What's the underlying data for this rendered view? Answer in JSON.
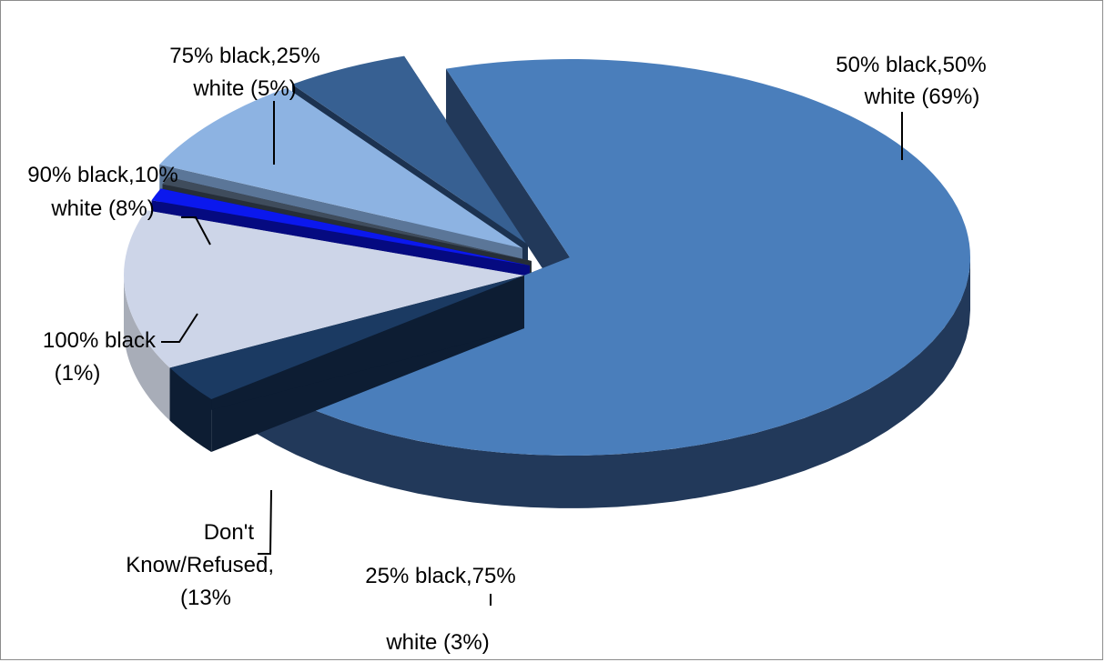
{
  "chart_data": {
    "type": "pie",
    "title": "",
    "legend": "none",
    "style": "3d-exploded",
    "slices": [
      {
        "label_line1": "50% black,50%",
        "label_line2": "white (69%)",
        "value": 69,
        "top_color": "#4a7ebb",
        "side_color": "#22395a"
      },
      {
        "label_line1": "25% black,75%",
        "label_line2": "white (3%)",
        "value": 3,
        "top_color": "#1b3a62",
        "side_color": "#0d1d33"
      },
      {
        "label_line1": "Don't",
        "label_line2": "Know/Refused,",
        "label_line3": "(13%",
        "value": 13,
        "top_color": "#cdd5e8",
        "side_color": "#a8adb8"
      },
      {
        "label_line1": "100% black",
        "label_line2": "(1%)",
        "value": 1,
        "top_color": "#0b18ee",
        "side_color": "#050a80"
      },
      {
        "label_line1": "",
        "label_line2": "",
        "value": 0.6,
        "top_color": "#3f4c5c",
        "side_color": "#262e38"
      },
      {
        "label_line1": "90% black,10%",
        "label_line2": "white (8%)",
        "value": 8,
        "top_color": "#8db3e2",
        "side_color": "#5b7698"
      },
      {
        "label_line1": "75% black,25%",
        "label_line2": "white (5%)",
        "value": 5,
        "top_color": "#376092",
        "side_color": "#1c3250"
      }
    ]
  }
}
